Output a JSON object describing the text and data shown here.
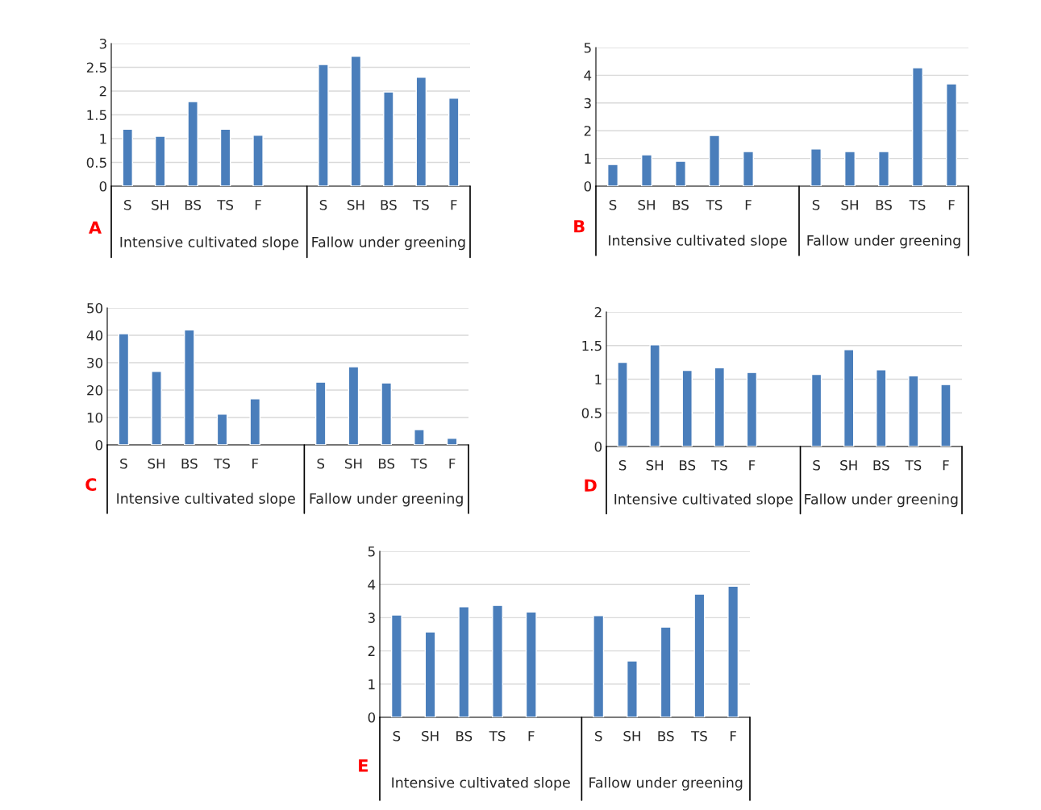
{
  "chart_data": [
    {
      "type": "bar",
      "title": "A",
      "categories": [
        "S",
        "SH",
        "BS",
        "TS",
        "F",
        null,
        "S",
        "SH",
        "BS",
        "TS",
        "F"
      ],
      "values": [
        1.2,
        1.05,
        1.78,
        1.2,
        1.07,
        null,
        2.56,
        2.73,
        1.98,
        2.29,
        1.85
      ],
      "color": "#4a7ebb",
      "ylim": [
        0,
        3
      ],
      "yticks": [
        0,
        0.5,
        1,
        1.5,
        2,
        2.5,
        3
      ],
      "grid": "y",
      "annotations": [
        "Intensive cultivated slope",
        "Fallow under greening"
      ]
    },
    {
      "type": "bar",
      "title": "B",
      "categories": [
        "S",
        "SH",
        "BS",
        "TS",
        "F",
        null,
        "S",
        "SH",
        "BS",
        "TS",
        "F"
      ],
      "values": [
        0.78,
        1.13,
        0.9,
        1.83,
        1.25,
        null,
        1.34,
        1.25,
        1.25,
        4.27,
        3.69
      ],
      "color": "#4a7ebb",
      "ylim": [
        0,
        5
      ],
      "yticks": [
        0,
        1,
        2,
        3,
        4,
        5
      ],
      "grid": "y",
      "annotations": [
        "Intensive cultivated slope",
        "Fallow under greening"
      ]
    },
    {
      "type": "bar",
      "title": "C",
      "categories": [
        "S",
        "SH",
        "BS",
        "TS",
        "F",
        null,
        "S",
        "SH",
        "BS",
        "TS",
        "F"
      ],
      "values": [
        40.6,
        26.8,
        42,
        11.2,
        16.8,
        null,
        22.9,
        28.5,
        22.6,
        5.6,
        2.4
      ],
      "color": "#4a7ebb",
      "ylim": [
        0,
        50
      ],
      "yticks": [
        0,
        10,
        20,
        30,
        40,
        50
      ],
      "grid": "y",
      "annotations": [
        "Intensive cultivated slope",
        "Fallow under greening"
      ]
    },
    {
      "type": "bar",
      "title": "D",
      "categories": [
        "S",
        "SH",
        "BS",
        "TS",
        "F",
        null,
        "S",
        "SH",
        "BS",
        "TS",
        "F"
      ],
      "values": [
        1.25,
        1.51,
        1.13,
        1.17,
        1.1,
        null,
        1.07,
        1.44,
        1.14,
        1.05,
        0.92
      ],
      "color": "#4a7ebb",
      "ylim": [
        0,
        2
      ],
      "yticks": [
        0,
        0.5,
        1,
        1.5,
        2
      ],
      "grid": "y",
      "annotations": [
        "Intensive cultivated slope",
        "Fallow under greening"
      ]
    },
    {
      "type": "bar",
      "title": "E",
      "categories": [
        "S",
        "SH",
        "BS",
        "TS",
        "F",
        null,
        "S",
        "SH",
        "BS",
        "TS",
        "F"
      ],
      "values": [
        3.08,
        2.57,
        3.33,
        3.37,
        3.17,
        null,
        3.06,
        1.7,
        2.72,
        3.71,
        3.95
      ],
      "color": "#4a7ebb",
      "ylim": [
        0,
        5
      ],
      "yticks": [
        0,
        1,
        2,
        3,
        4,
        5
      ],
      "grid": "y",
      "annotations": [
        "Intensive cultivated slope",
        "Fallow under greening"
      ]
    }
  ]
}
